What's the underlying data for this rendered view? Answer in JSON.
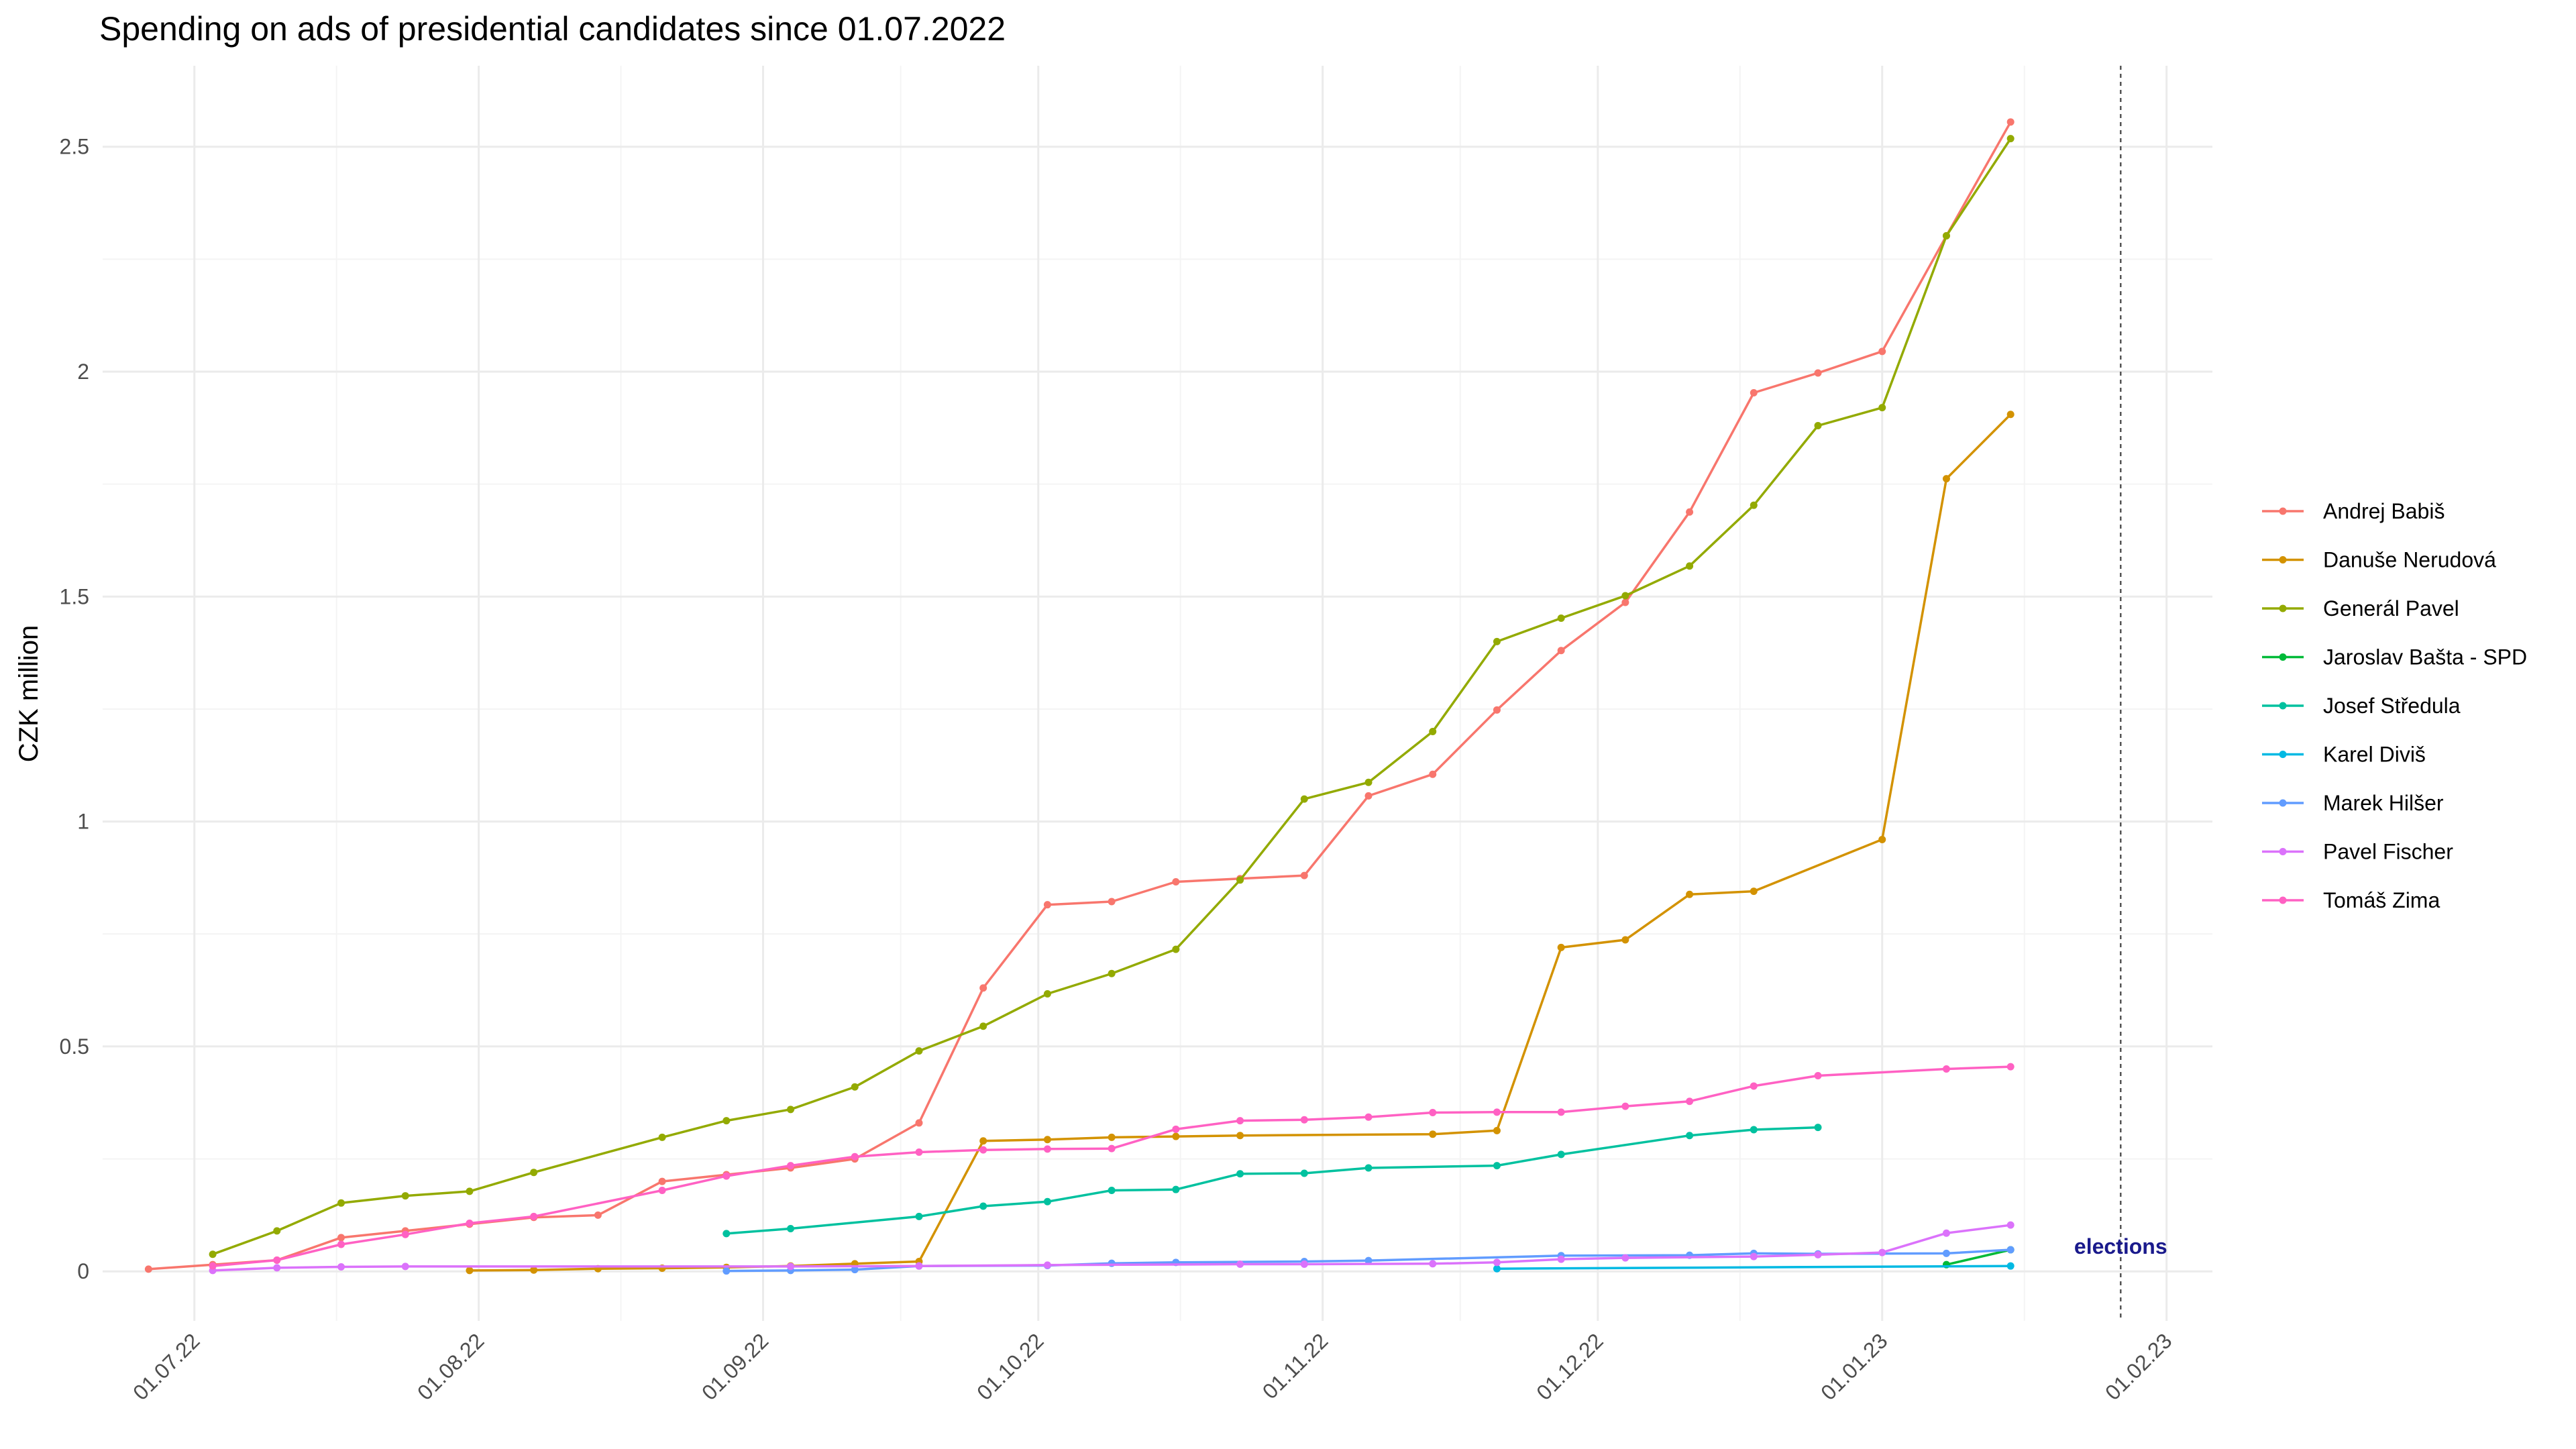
{
  "chart_data": {
    "type": "line",
    "title": "Spending on ads of presidential candidates since 01.07.2022",
    "y_label": "CZK million",
    "xlim": [
      "2022-06-21",
      "2023-02-06"
    ],
    "ylim": [
      -0.11,
      2.68
    ],
    "xticks": [
      {
        "value": "2022-07-01",
        "label": "01.07.22"
      },
      {
        "value": "2022-08-01",
        "label": "01.08.22"
      },
      {
        "value": "2022-09-01",
        "label": "01.09.22"
      },
      {
        "value": "2022-10-01",
        "label": "01.10.22"
      },
      {
        "value": "2022-11-01",
        "label": "01.11.22"
      },
      {
        "value": "2022-12-01",
        "label": "01.12.22"
      },
      {
        "value": "2023-01-01",
        "label": "01.01.23"
      },
      {
        "value": "2023-02-01",
        "label": "01.02.23"
      }
    ],
    "yticks": [
      0,
      0.5,
      1,
      1.5,
      2,
      2.5
    ],
    "grid": true,
    "legend": "right",
    "annotations": [
      {
        "text": "elections",
        "x": "2023-01-27",
        "color": "#1a1a8c"
      }
    ],
    "series": [
      {
        "name": "Andrej Babiš",
        "color": "#F8766D",
        "x": [
          "2022-06-26",
          "2022-07-03",
          "2022-07-10",
          "2022-07-17",
          "2022-07-24",
          "2022-07-31",
          "2022-08-07",
          "2022-08-14",
          "2022-08-21",
          "2022-08-28",
          "2022-09-04",
          "2022-09-11",
          "2022-09-18",
          "2022-09-25",
          "2022-10-02",
          "2022-10-09",
          "2022-10-16",
          "2022-10-23",
          "2022-10-30",
          "2022-11-06",
          "2022-11-13",
          "2022-11-20",
          "2022-11-27",
          "2022-12-04",
          "2022-12-11",
          "2022-12-18",
          "2022-12-25",
          "2023-01-01",
          "2023-01-08",
          "2023-01-15"
        ],
        "values": [
          0.005,
          0.015,
          0.025,
          0.075,
          0.09,
          0.105,
          0.12,
          0.125,
          0.2,
          0.215,
          0.23,
          0.25,
          0.33,
          0.63,
          0.815,
          0.822,
          0.866,
          0.873,
          0.88,
          1.057,
          1.105,
          1.248,
          1.38,
          1.487,
          1.688,
          1.953,
          1.997,
          2.045,
          2.302,
          2.555
        ]
      },
      {
        "name": "Danuše Nerudová",
        "color": "#D39200",
        "x": [
          "2022-07-31",
          "2022-08-07",
          "2022-08-14",
          "2022-08-21",
          "2022-08-28",
          "2022-09-04",
          "2022-09-11",
          "2022-09-18",
          "2022-09-25",
          "2022-10-02",
          "2022-10-09",
          "2022-10-16",
          "2022-10-23",
          "2022-11-13",
          "2022-11-20",
          "2022-11-27",
          "2022-12-04",
          "2022-12-11",
          "2022-12-18",
          "2023-01-01",
          "2023-01-08",
          "2023-01-15"
        ],
        "values": [
          0.002,
          0.003,
          0.006,
          0.007,
          0.009,
          0.012,
          0.017,
          0.022,
          0.29,
          0.293,
          0.298,
          0.3,
          0.302,
          0.305,
          0.313,
          0.72,
          0.737,
          0.838,
          0.845,
          0.96,
          1.762,
          1.905
        ]
      },
      {
        "name": "Generál Pavel",
        "color": "#93AA00",
        "x": [
          "2022-07-03",
          "2022-07-10",
          "2022-07-17",
          "2022-07-24",
          "2022-07-31",
          "2022-08-07",
          "2022-08-21",
          "2022-08-28",
          "2022-09-04",
          "2022-09-11",
          "2022-09-18",
          "2022-09-25",
          "2022-10-02",
          "2022-10-09",
          "2022-10-16",
          "2022-10-23",
          "2022-10-30",
          "2022-11-06",
          "2022-11-13",
          "2022-11-20",
          "2022-11-27",
          "2022-12-04",
          "2022-12-11",
          "2022-12-18",
          "2022-12-25",
          "2023-01-01",
          "2023-01-08",
          "2023-01-15"
        ],
        "values": [
          0.038,
          0.09,
          0.152,
          0.168,
          0.178,
          0.22,
          0.298,
          0.335,
          0.36,
          0.41,
          0.49,
          0.545,
          0.617,
          0.662,
          0.716,
          0.87,
          1.05,
          1.087,
          1.2,
          1.4,
          1.452,
          1.502,
          1.568,
          1.703,
          1.88,
          1.92,
          2.302,
          2.518
        ]
      },
      {
        "name": "Jaroslav Bašta - SPD",
        "color": "#00BA38",
        "x": [
          "2023-01-08",
          "2023-01-15"
        ],
        "values": [
          0.015,
          0.048
        ]
      },
      {
        "name": "Josef Středula",
        "color": "#00C19F",
        "x": [
          "2022-08-28",
          "2022-09-04",
          "2022-09-18",
          "2022-09-25",
          "2022-10-02",
          "2022-10-09",
          "2022-10-16",
          "2022-10-23",
          "2022-10-30",
          "2022-11-06",
          "2022-11-20",
          "2022-11-27",
          "2022-12-11",
          "2022-12-18",
          "2022-12-25"
        ],
        "values": [
          0.084,
          0.095,
          0.122,
          0.145,
          0.155,
          0.18,
          0.182,
          0.217,
          0.218,
          0.23,
          0.235,
          0.26,
          0.302,
          0.315,
          0.32
        ]
      },
      {
        "name": "Karel Diviš",
        "color": "#00B9E3",
        "x": [
          "2022-11-20",
          "2023-01-15"
        ],
        "values": [
          0.006,
          0.012
        ]
      },
      {
        "name": "Marek Hilšer",
        "color": "#619CFF",
        "x": [
          "2022-08-28",
          "2022-09-04",
          "2022-09-11",
          "2022-09-18",
          "2022-10-02",
          "2022-10-09",
          "2022-10-16",
          "2022-10-30",
          "2022-11-06",
          "2022-11-27",
          "2022-12-11",
          "2022-12-18",
          "2022-12-25",
          "2023-01-08",
          "2023-01-15"
        ],
        "values": [
          0.001,
          0.002,
          0.004,
          0.012,
          0.013,
          0.018,
          0.02,
          0.022,
          0.024,
          0.035,
          0.036,
          0.04,
          0.039,
          0.04,
          0.048
        ]
      },
      {
        "name": "Pavel Fischer",
        "color": "#DB72FB",
        "x": [
          "2022-07-03",
          "2022-07-10",
          "2022-07-17",
          "2022-07-24",
          "2022-09-04",
          "2022-09-18",
          "2022-10-02",
          "2022-10-23",
          "2022-10-30",
          "2022-11-13",
          "2022-11-20",
          "2022-11-27",
          "2022-12-04",
          "2022-12-18",
          "2022-12-25",
          "2023-01-01",
          "2023-01-08",
          "2023-01-15"
        ],
        "values": [
          0.002,
          0.008,
          0.01,
          0.011,
          0.011,
          0.012,
          0.014,
          0.016,
          0.016,
          0.017,
          0.02,
          0.027,
          0.03,
          0.033,
          0.037,
          0.042,
          0.085,
          0.103
        ]
      },
      {
        "name": "Tomáš Zima",
        "color": "#FF61C3",
        "x": [
          "2022-07-03",
          "2022-07-10",
          "2022-07-17",
          "2022-07-24",
          "2022-07-31",
          "2022-08-07",
          "2022-08-21",
          "2022-08-28",
          "2022-09-04",
          "2022-09-11",
          "2022-09-18",
          "2022-09-25",
          "2022-10-02",
          "2022-10-09",
          "2022-10-16",
          "2022-10-23",
          "2022-10-30",
          "2022-11-06",
          "2022-11-13",
          "2022-11-20",
          "2022-11-27",
          "2022-12-04",
          "2022-12-11",
          "2022-12-18",
          "2022-12-25",
          "2023-01-08",
          "2023-01-15"
        ],
        "values": [
          0.012,
          0.025,
          0.06,
          0.082,
          0.107,
          0.122,
          0.18,
          0.212,
          0.235,
          0.255,
          0.265,
          0.27,
          0.272,
          0.273,
          0.316,
          0.335,
          0.337,
          0.343,
          0.353,
          0.354,
          0.354,
          0.367,
          0.378,
          0.412,
          0.435,
          0.45,
          0.455
        ]
      }
    ]
  }
}
